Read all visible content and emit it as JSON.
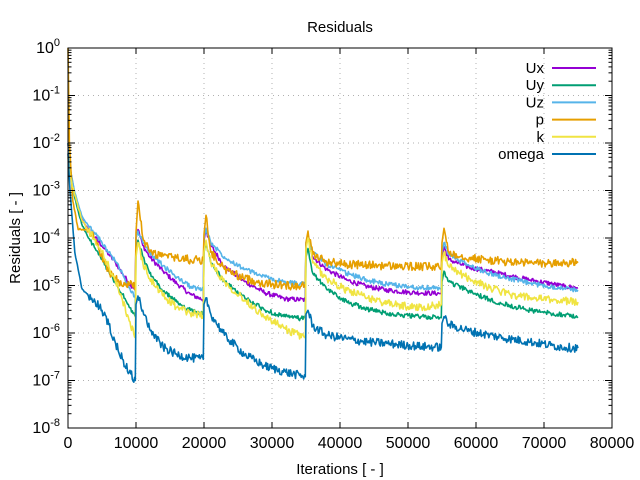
{
  "chart_data": {
    "type": "line",
    "title": "Residuals",
    "xlabel": "Iterations [ - ]",
    "ylabel": "Residuals [ - ]",
    "xlim": [
      0,
      80000
    ],
    "ylim": [
      1e-08,
      1
    ],
    "yscale": "log",
    "grid": true,
    "legend_position": "top-right",
    "x_ticks": [
      0,
      10000,
      20000,
      30000,
      40000,
      50000,
      60000,
      70000,
      80000
    ],
    "x_tick_labels": [
      "0",
      "10000",
      "20000",
      "30000",
      "40000",
      "50000",
      "60000",
      "70000",
      "80000"
    ],
    "y_ticks": [
      {
        "value": 1,
        "base": "10",
        "exp": "0"
      },
      {
        "value": 0.1,
        "base": "10",
        "exp": "-1"
      },
      {
        "value": 0.01,
        "base": "10",
        "exp": "-2"
      },
      {
        "value": 0.001,
        "base": "10",
        "exp": "-3"
      },
      {
        "value": 0.0001,
        "base": "10",
        "exp": "-4"
      },
      {
        "value": 1e-05,
        "base": "10",
        "exp": "-5"
      },
      {
        "value": 1e-06,
        "base": "10",
        "exp": "-6"
      },
      {
        "value": 1e-07,
        "base": "10",
        "exp": "-7"
      },
      {
        "value": 1e-08,
        "base": "10",
        "exp": "-8"
      }
    ],
    "series": [
      {
        "name": "Ux",
        "color": "#9400d3",
        "x": [
          0,
          300,
          1000,
          2000,
          3000,
          4000,
          5000,
          6000,
          7000,
          8000,
          9000,
          9900,
          10000,
          10300,
          11000,
          12000,
          14000,
          16000,
          18000,
          19900,
          20000,
          20300,
          21000,
          23000,
          26000,
          29000,
          32000,
          34900,
          35000,
          35300,
          36000,
          38000,
          41000,
          44000,
          47000,
          50000,
          52000,
          54900,
          55000,
          55300,
          56000,
          59000,
          62000,
          65000,
          68000,
          71000,
          73000,
          75000
        ],
        "y": [
          0.01,
          0.003,
          0.0008,
          0.00025,
          0.00015,
          0.0001,
          7e-05,
          4.5e-05,
          3e-05,
          1.8e-05,
          1.1e-05,
          8.5e-06,
          0.0001,
          0.00015,
          7e-05,
          4e-05,
          2e-05,
          1.1e-05,
          6.5e-06,
          5e-06,
          9e-05,
          0.00015,
          7e-05,
          2.5e-05,
          1.2e-05,
          7e-06,
          5.2e-06,
          5e-06,
          7e-05,
          0.00011,
          4e-05,
          2.2e-05,
          1.3e-05,
          9.5e-06,
          8e-06,
          7.2e-06,
          7e-06,
          6.8e-06,
          4e-05,
          6.5e-05,
          3.5e-05,
          2.4e-05,
          2e-05,
          1.6e-05,
          1.3e-05,
          1.1e-05,
          9.5e-06,
          9e-06
        ]
      },
      {
        "name": "Uy",
        "color": "#009e73",
        "x": [
          0,
          300,
          1000,
          2000,
          3000,
          4000,
          5000,
          6000,
          7000,
          8000,
          9000,
          9900,
          10000,
          10300,
          11000,
          12000,
          14000,
          16000,
          18000,
          19900,
          20000,
          20300,
          21000,
          23000,
          26000,
          29000,
          32000,
          34900,
          35000,
          35300,
          36000,
          38000,
          41000,
          44000,
          47000,
          50000,
          52000,
          54900,
          55000,
          55300,
          56000,
          59000,
          62000,
          65000,
          68000,
          71000,
          73000,
          75000
        ],
        "y": [
          0.01,
          0.003,
          0.0007,
          0.0002,
          0.0001,
          6e-05,
          3.5e-05,
          2e-05,
          1.1e-05,
          6.5e-06,
          3.5e-06,
          2.2e-06,
          6e-05,
          9e-05,
          4e-05,
          1.8e-05,
          7.5e-06,
          4.5e-06,
          3e-06,
          2.5e-06,
          5e-05,
          8e-05,
          3e-05,
          1.2e-05,
          5.5e-06,
          3e-06,
          2.2e-06,
          2e-06,
          4e-05,
          6e-05,
          1.8e-05,
          8.5e-06,
          4.5e-06,
          3.2e-06,
          2.6e-06,
          2.3e-06,
          2.2e-06,
          2.1e-06,
          1.2e-05,
          2e-05,
          1.2e-05,
          7.5e-06,
          5e-06,
          3.8e-06,
          3e-06,
          2.6e-06,
          2.4e-06,
          2.2e-06
        ]
      },
      {
        "name": "Uz",
        "color": "#56b4e9",
        "x": [
          0,
          300,
          1000,
          2000,
          3000,
          4000,
          5000,
          6000,
          7000,
          8000,
          9000,
          9900,
          10000,
          10300,
          11000,
          12000,
          14000,
          16000,
          18000,
          19900,
          20000,
          20300,
          21000,
          23000,
          26000,
          29000,
          32000,
          34900,
          35000,
          35300,
          36000,
          38000,
          41000,
          44000,
          47000,
          50000,
          52000,
          54900,
          55000,
          55300,
          56000,
          59000,
          62000,
          65000,
          68000,
          71000,
          73000,
          75000
        ],
        "y": [
          0.01,
          0.003,
          0.0009,
          0.0003,
          0.00018,
          0.00012,
          8e-05,
          5e-05,
          3.2e-05,
          1.8e-05,
          9e-06,
          5.5e-06,
          0.0001,
          0.00014,
          8e-05,
          5e-05,
          2.6e-05,
          1.5e-05,
          9.5e-06,
          8e-06,
          0.0001,
          0.00016,
          8e-05,
          4e-05,
          2.2e-05,
          1.5e-05,
          1.15e-05,
          1.1e-05,
          8e-05,
          0.00012,
          5e-05,
          2.8e-05,
          1.8e-05,
          1.3e-05,
          1.05e-05,
          9.5e-06,
          9e-06,
          8.8e-06,
          5e-05,
          8e-05,
          4.5e-05,
          2.6e-05,
          1.8e-05,
          1.4e-05,
          1.1e-05,
          9.5e-06,
          8.8e-06,
          8e-06
        ]
      },
      {
        "name": "p",
        "color": "#e69f00",
        "x": [
          0,
          200,
          700,
          1500,
          2500,
          3500,
          4500,
          5500,
          6500,
          7500,
          8500,
          9900,
          10000,
          10300,
          11000,
          12000,
          14000,
          16000,
          18000,
          19900,
          20000,
          20300,
          21000,
          23000,
          26000,
          29000,
          32000,
          34900,
          35000,
          35300,
          36000,
          38000,
          41000,
          44000,
          47000,
          50000,
          52000,
          54900,
          55000,
          55300,
          56000,
          59000,
          62000,
          65000,
          68000,
          71000,
          73000,
          75000
        ],
        "y": [
          1,
          0.01,
          0.0006,
          0.00015,
          0.00015,
          0.00012,
          6e-05,
          2.8e-05,
          1.6e-05,
          1.2e-05,
          1.1e-05,
          1e-05,
          0.00013,
          0.0006,
          0.0001,
          5e-05,
          4.2e-05,
          3.8e-05,
          3.5e-05,
          3.4e-05,
          0.00012,
          0.0003,
          5e-05,
          2.2e-05,
          1.4e-05,
          1.1e-05,
          1e-05,
          1e-05,
          8e-05,
          0.00014,
          4.5e-05,
          3.2e-05,
          2.8e-05,
          2.7e-05,
          2.6e-05,
          2.5e-05,
          2.5e-05,
          2.4e-05,
          8e-05,
          0.00016,
          5e-05,
          3.8e-05,
          3.4e-05,
          3.1e-05,
          3e-05,
          2.9e-05,
          3e-05,
          3e-05
        ]
      },
      {
        "name": "k",
        "color": "#f0e442",
        "x": [
          0,
          300,
          1000,
          2000,
          3000,
          4000,
          5000,
          6000,
          7000,
          8000,
          9000,
          9900,
          10000,
          10300,
          11000,
          12000,
          14000,
          16000,
          18000,
          19900,
          20000,
          20300,
          21000,
          23000,
          26000,
          29000,
          32000,
          34900,
          35000,
          35300,
          36000,
          38000,
          41000,
          44000,
          47000,
          50000,
          52000,
          54900,
          55000,
          55300,
          56000,
          59000,
          62000,
          65000,
          68000,
          71000,
          73000,
          75000
        ],
        "y": [
          0.005,
          0.002,
          0.0008,
          0.00025,
          0.00014,
          9e-05,
          5e-05,
          2.5e-05,
          1.2e-05,
          5e-06,
          1.8e-06,
          8e-07,
          4e-05,
          8e-05,
          3e-05,
          1.4e-05,
          6e-06,
          3.5e-06,
          2.6e-06,
          2.4e-06,
          5e-05,
          9e-05,
          3e-05,
          1.2e-05,
          5e-06,
          2.2e-06,
          1.2e-06,
          8e-07,
          6e-05,
          0.0001,
          3e-05,
          1.4e-05,
          8e-06,
          5.5e-06,
          4.2e-06,
          3.6e-06,
          3.5e-06,
          4e-06,
          3e-05,
          5e-05,
          2.5e-05,
          1.4e-05,
          9e-06,
          6.5e-06,
          5.5e-06,
          5e-06,
          4.8e-06,
          4.5e-06
        ]
      },
      {
        "name": "omega",
        "color": "#0072b2",
        "x": [
          0,
          300,
          1000,
          2000,
          3000,
          4000,
          5000,
          6000,
          7000,
          8000,
          9000,
          9900,
          10000,
          10300,
          11000,
          12000,
          14000,
          16000,
          18000,
          19900,
          20000,
          20300,
          21000,
          23000,
          26000,
          29000,
          32000,
          34900,
          35000,
          35300,
          36000,
          38000,
          41000,
          44000,
          47000,
          50000,
          52000,
          54900,
          55000,
          55300,
          56000,
          59000,
          62000,
          65000,
          68000,
          71000,
          73000,
          75000
        ],
        "y": [
          0.006,
          0.001,
          5e-05,
          9e-06,
          6e-06,
          4.5e-06,
          3e-06,
          1.5e-06,
          6e-07,
          2.8e-07,
          1.5e-07,
          1e-07,
          4e-06,
          6e-06,
          3e-06,
          1.2e-06,
          5e-07,
          3.5e-07,
          3e-07,
          2.8e-07,
          4e-06,
          5.5e-06,
          2.5e-06,
          9e-07,
          3.5e-07,
          2e-07,
          1.5e-07,
          1.2e-07,
          2.5e-06,
          3e-06,
          1.4e-06,
          9e-07,
          7.5e-07,
          6.5e-07,
          6e-07,
          5.5e-07,
          5.2e-07,
          5e-07,
          1.6e-06,
          2.2e-06,
          1.5e-06,
          1.1e-06,
          9e-07,
          7.5e-07,
          6.5e-07,
          5.5e-07,
          5e-07,
          4.8e-07
        ]
      }
    ]
  }
}
